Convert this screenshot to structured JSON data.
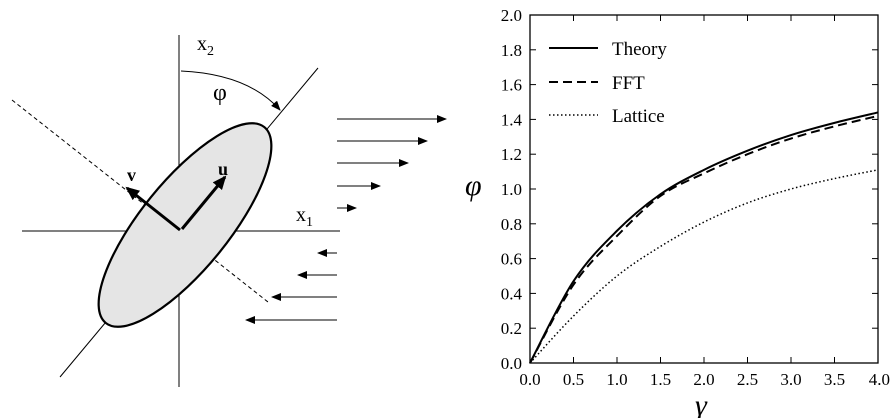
{
  "diagram": {
    "labels": {
      "x2_base": "x",
      "x2_sub": "2",
      "x1_base": "x",
      "x1_sub": "1",
      "phi": "φ",
      "u": "u",
      "v": "v"
    }
  },
  "chart_data": {
    "type": "line",
    "title": "",
    "xlabel": "γ",
    "ylabel": "φ",
    "xlim": [
      0.0,
      4.0
    ],
    "ylim": [
      0.0,
      2.0
    ],
    "xticks": [
      "0.0",
      "0.5",
      "1.0",
      "1.5",
      "2.0",
      "2.5",
      "3.0",
      "3.5",
      "4.0"
    ],
    "yticks": [
      "0.0",
      "0.2",
      "0.4",
      "0.6",
      "0.8",
      "1.0",
      "1.2",
      "1.4",
      "1.6",
      "1.8",
      "2.0"
    ],
    "grid": false,
    "legend_position": "top-left",
    "x": [
      0.0,
      0.5,
      1.0,
      1.5,
      2.0,
      2.5,
      3.0,
      3.5,
      4.0
    ],
    "series": [
      {
        "name": "Theory",
        "style": "solid",
        "values": [
          0.0,
          0.47,
          0.76,
          0.97,
          1.11,
          1.22,
          1.31,
          1.38,
          1.44
        ]
      },
      {
        "name": "FFT",
        "style": "dashed",
        "values": [
          0.0,
          0.45,
          0.73,
          0.96,
          1.09,
          1.2,
          1.29,
          1.36,
          1.42
        ]
      },
      {
        "name": "Lattice",
        "style": "dotted",
        "values": [
          0.0,
          0.27,
          0.5,
          0.67,
          0.81,
          0.92,
          1.0,
          1.06,
          1.11
        ]
      }
    ]
  }
}
